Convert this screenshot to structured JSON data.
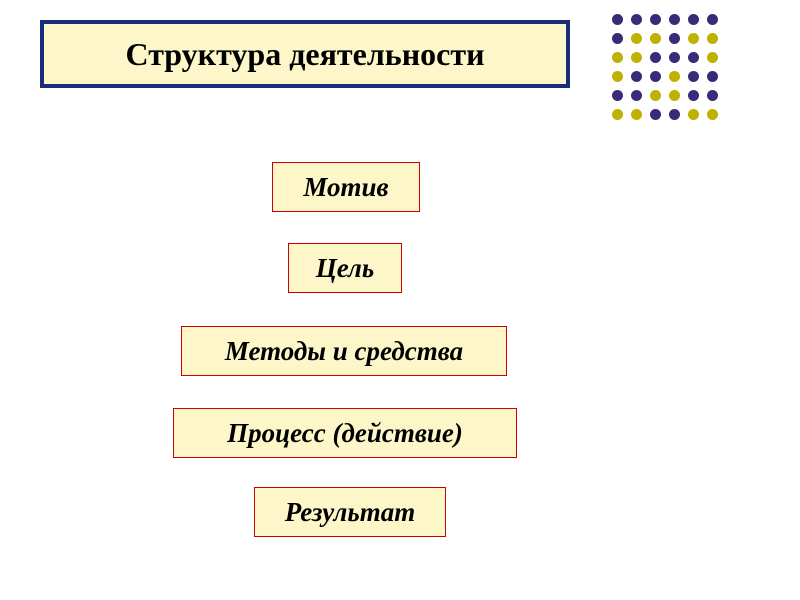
{
  "title": "Структура деятельности",
  "title_box": {
    "border_color": "#1a2d7a",
    "border_width": 4,
    "background_color": "#fdf6c8",
    "font_size": 32,
    "font_weight": "bold"
  },
  "items": [
    {
      "label": "Мотив"
    },
    {
      "label": "Цель"
    },
    {
      "label": "Методы и средства"
    },
    {
      "label": "Процесс (действие)"
    },
    {
      "label": "Результат"
    }
  ],
  "item_box": {
    "border_color": "#cc0000",
    "background_color": "#fdf6c8",
    "font_size": 27,
    "font_style": "italic",
    "font_weight": "bold"
  },
  "dot_grid": {
    "rows": 6,
    "cols": 6,
    "dot_size": 11,
    "gap": 5,
    "colors": [
      [
        "#3a2a7a",
        "#3a2a7a",
        "#3a2a7a",
        "#3a2a7a",
        "#3a2a7a",
        "#3a2a7a"
      ],
      [
        "#3a2a7a",
        "#c0b000",
        "#c0b000",
        "#3a2a7a",
        "#c0b000",
        "#c0b000"
      ],
      [
        "#c0b000",
        "#c0b000",
        "#3a2a7a",
        "#3a2a7a",
        "#3a2a7a",
        "#c0b000"
      ],
      [
        "#c0b000",
        "#3a2a7a",
        "#3a2a7a",
        "#c0b000",
        "#3a2a7a",
        "#3a2a7a"
      ],
      [
        "#3a2a7a",
        "#3a2a7a",
        "#c0b000",
        "#c0b000",
        "#3a2a7a",
        "#3a2a7a"
      ],
      [
        "#c0b000",
        "#c0b000",
        "#3a2a7a",
        "#3a2a7a",
        "#c0b000",
        "#c0b000"
      ]
    ]
  },
  "background_color": "#ffffff"
}
